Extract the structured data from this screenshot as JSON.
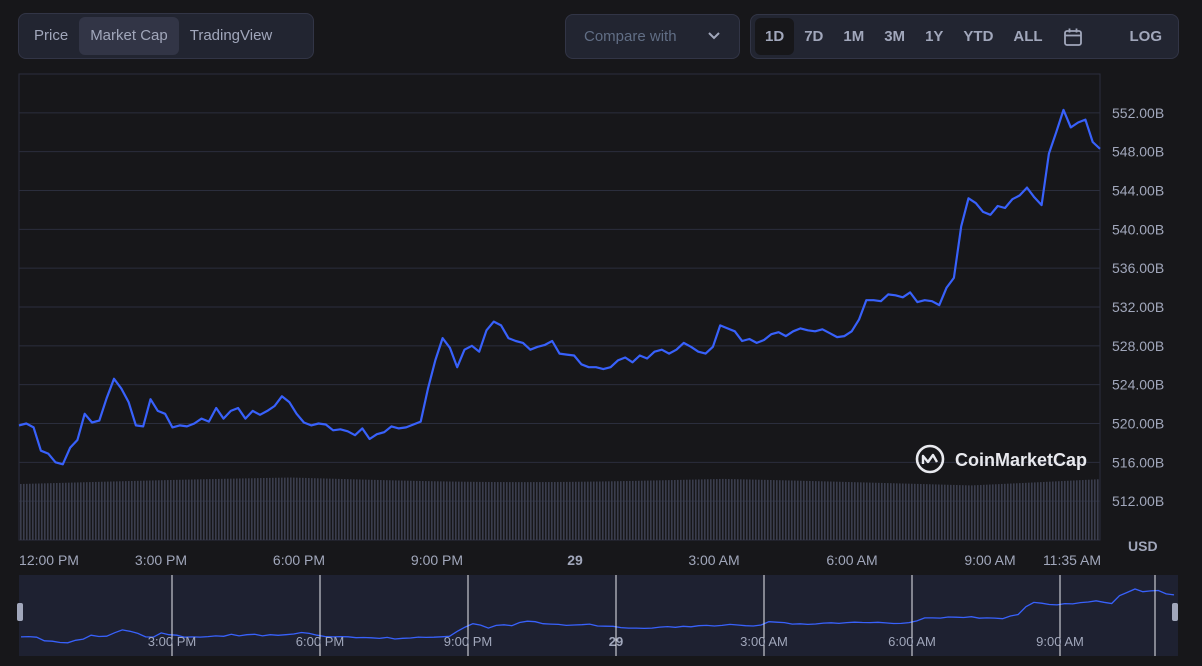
{
  "tabs": [
    {
      "label": "Price",
      "active": false
    },
    {
      "label": "Market Cap",
      "active": true
    },
    {
      "label": "TradingView",
      "active": false
    }
  ],
  "compare": {
    "label": "Compare with",
    "icon": "chevron-down-icon"
  },
  "ranges": [
    "1D",
    "7D",
    "1M",
    "3M",
    "1Y",
    "YTD",
    "ALL"
  ],
  "active_range": "1D",
  "calendar_icon": "calendar-icon",
  "log_label": "LOG",
  "watermark": {
    "text": "CoinMarketCap",
    "icon": "coinmarketcap-logo-icon"
  },
  "colors": {
    "line": "#3861fb",
    "grid": "#2b2e3d",
    "volume": "#3a3d4d",
    "navigator_bg": "#1e2131"
  },
  "chart_data": {
    "type": "line",
    "series": [
      {
        "values": [
          519.8,
          520.0,
          519.6,
          517.2,
          516.9,
          516.0,
          515.8,
          517.5,
          518.3,
          521.0,
          520.1,
          520.3,
          522.6,
          524.6,
          523.6,
          522.2,
          519.8,
          519.7,
          522.5,
          521.3,
          521.0,
          519.6,
          519.8,
          519.7,
          520.0,
          520.5,
          520.2,
          521.6,
          520.5,
          521.3,
          521.6,
          520.5,
          521.3,
          520.9,
          521.3,
          521.8,
          522.8,
          522.2,
          521.0,
          520.1,
          519.8,
          520.0,
          519.9,
          519.3,
          519.4,
          519.2,
          518.8,
          519.5,
          518.4,
          518.9,
          519.1,
          519.7,
          519.5,
          519.6,
          519.9,
          520.2,
          523.6,
          526.5,
          528.8,
          527.8,
          525.8,
          527.6,
          528.0,
          527.4,
          529.6,
          530.5,
          530.1,
          528.8,
          528.5,
          528.3,
          527.6,
          527.9,
          528.1,
          528.5,
          527.2,
          527.1,
          527.0,
          526.1,
          525.8,
          525.8,
          525.6,
          525.8,
          526.5,
          526.8,
          526.3,
          527.0,
          526.7,
          527.4,
          527.6,
          527.2,
          527.6,
          528.3,
          527.9,
          527.4,
          527.2,
          527.9,
          530.1,
          529.8,
          529.5,
          528.5,
          528.7,
          528.3,
          528.6,
          529.2,
          529.4,
          529.0,
          529.5,
          529.8,
          529.6,
          529.5,
          529.7,
          529.3,
          528.9,
          529.0,
          529.5,
          530.7,
          532.7,
          532.7,
          532.6,
          533.3,
          533.2,
          533.0,
          533.5,
          532.5,
          532.7,
          532.6,
          532.2,
          534.0,
          535.0,
          540.3,
          543.2,
          542.7,
          541.8,
          541.5,
          542.4,
          542.2,
          543.1,
          543.5,
          544.3,
          543.3,
          542.5,
          547.8,
          550.0,
          552.3,
          550.5,
          551.0,
          551.3,
          549.0,
          548.3
        ]
      }
    ],
    "x_ticks": [
      "12:00 PM",
      "3:00 PM",
      "6:00 PM",
      "9:00 PM",
      "29",
      "3:00 AM",
      "6:00 AM",
      "9:00 AM",
      "11:35 AM"
    ],
    "y_ticks": [
      "552.00B",
      "548.00B",
      "544.00B",
      "540.00B",
      "536.00B",
      "532.00B",
      "528.00B",
      "524.00B",
      "520.00B",
      "516.00B",
      "512.00B"
    ],
    "ylim": [
      508,
      556
    ],
    "y_unit": "USD",
    "grid": true,
    "navigator_ticks": [
      "3:00 PM",
      "6:00 PM",
      "9:00 PM",
      "29",
      "3:00 AM",
      "6:00 AM",
      "9:00 AM"
    ]
  }
}
